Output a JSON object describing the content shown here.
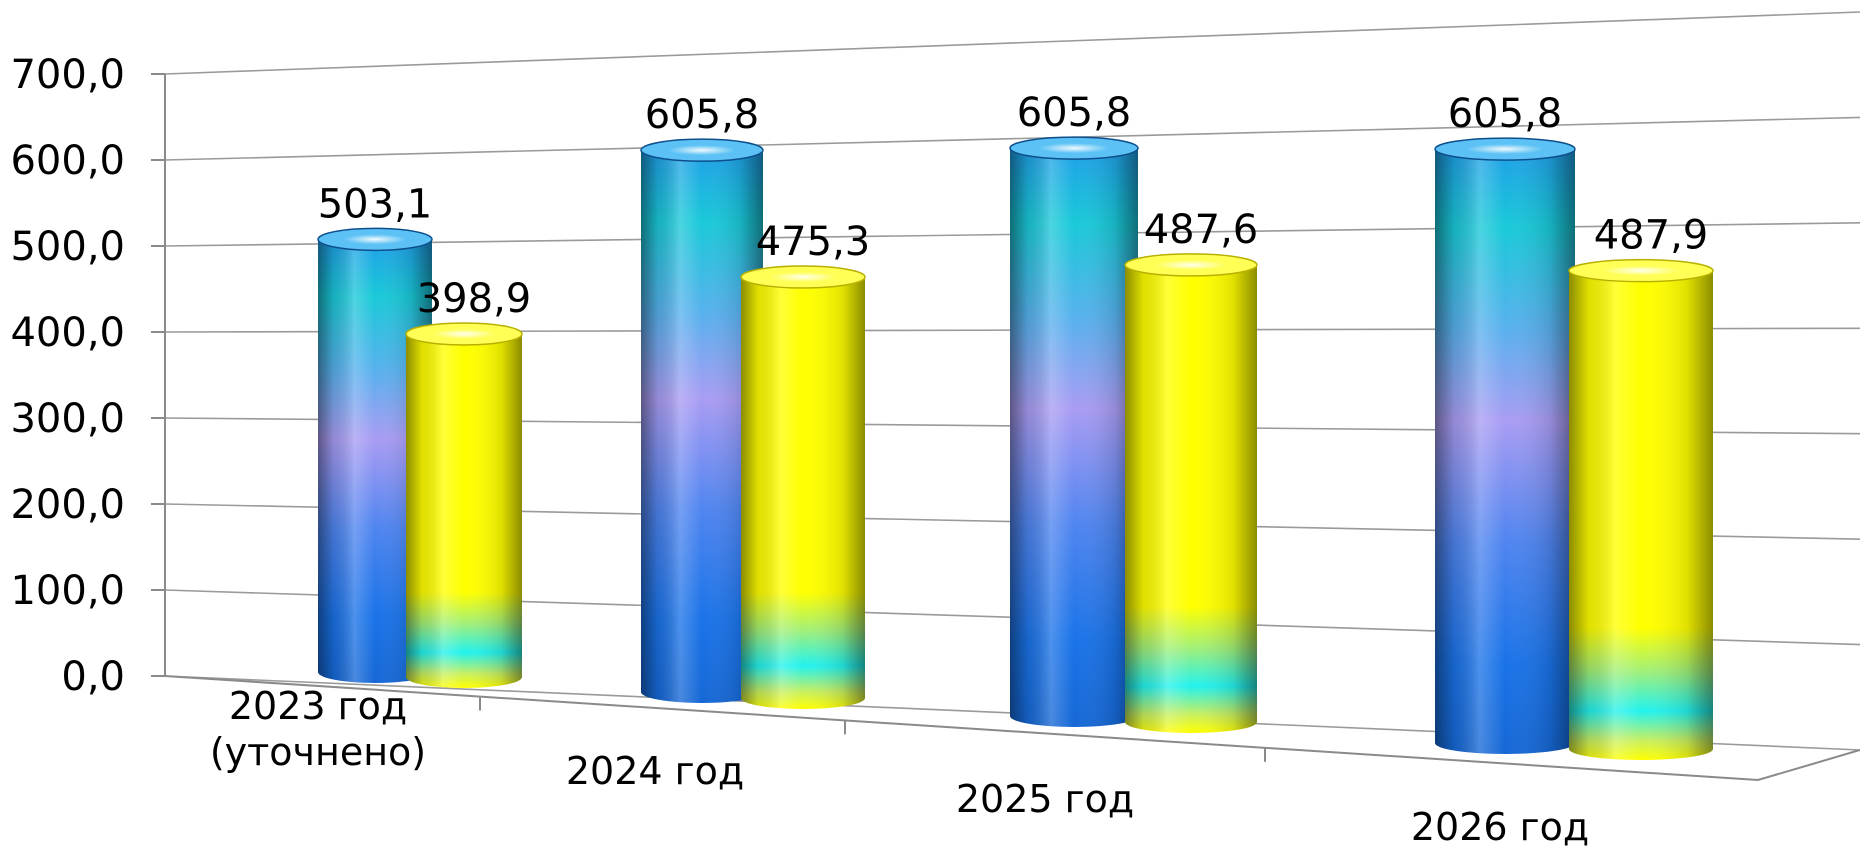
{
  "chart_data": {
    "type": "bar",
    "style": "3d-cylinder",
    "categories": [
      [
        "2023 год",
        "(уточнено)"
      ],
      [
        "2024 год"
      ],
      [
        "2025 год"
      ],
      [
        "2026 год"
      ]
    ],
    "series": [
      {
        "values": [
          503.1,
          605.8,
          605.8,
          605.8
        ],
        "labels": [
          "503,1",
          "605,8",
          "605,8",
          "605,8"
        ],
        "color": "#1e88e5"
      },
      {
        "values": [
          398.9,
          475.3,
          487.6,
          487.9
        ],
        "labels": [
          "398,9",
          "475,3",
          "487,6",
          "487,9"
        ],
        "color": "#ffff00"
      }
    ],
    "yticks": [
      "0,0",
      "100,0",
      "200,0",
      "300,0",
      "400,0",
      "500,0",
      "600,0",
      "700,0"
    ],
    "ylim": [
      0,
      700
    ],
    "grid": true,
    "legend": "none"
  }
}
